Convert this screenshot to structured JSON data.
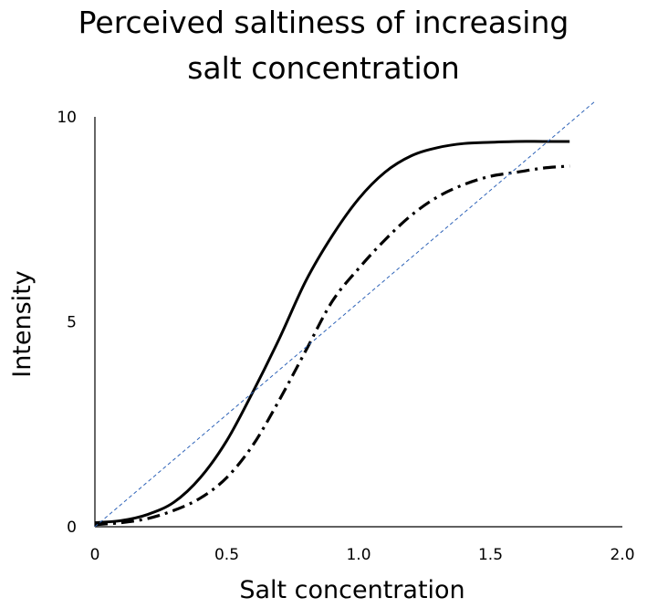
{
  "chart_data": {
    "type": "line",
    "title": "Perceived saltiness of increasing salt concentration",
    "title_lines": [
      "Perceived saltiness of increasing",
      "salt concentration"
    ],
    "xlabel": "Salt concentration",
    "ylabel": "Intensity",
    "xlim": [
      0,
      2.0
    ],
    "ylim": [
      0,
      10
    ],
    "x_ticks": [
      "0",
      "0.5",
      "1.0",
      "1.5",
      "2.0"
    ],
    "x_tick_values": [
      0,
      0.5,
      1.0,
      1.5,
      2.0
    ],
    "y_ticks": [
      "0",
      "5",
      "10"
    ],
    "y_tick_values": [
      0,
      5,
      10
    ],
    "grid": false,
    "legend": "none",
    "series": [
      {
        "style": "solid",
        "color": "#000000",
        "x": [
          0,
          0.1,
          0.2,
          0.3,
          0.4,
          0.5,
          0.6,
          0.7,
          0.8,
          0.9,
          1.0,
          1.1,
          1.2,
          1.3,
          1.4,
          1.5,
          1.6,
          1.7,
          1.8
        ],
        "y": [
          0.1,
          0.15,
          0.3,
          0.6,
          1.2,
          2.1,
          3.3,
          4.6,
          6.0,
          7.1,
          8.0,
          8.65,
          9.05,
          9.25,
          9.35,
          9.38,
          9.4,
          9.4,
          9.4
        ]
      },
      {
        "style": "dash-dot",
        "color": "#000000",
        "x": [
          0,
          0.1,
          0.2,
          0.3,
          0.4,
          0.5,
          0.6,
          0.7,
          0.8,
          0.9,
          1.0,
          1.1,
          1.2,
          1.3,
          1.4,
          1.5,
          1.6,
          1.7,
          1.8
        ],
        "y": [
          0.05,
          0.1,
          0.2,
          0.4,
          0.7,
          1.2,
          2.0,
          3.1,
          4.3,
          5.5,
          6.3,
          7.0,
          7.6,
          8.05,
          8.35,
          8.55,
          8.65,
          8.75,
          8.8
        ]
      },
      {
        "style": "dashed",
        "color": "#2e63b8",
        "x": [
          0,
          1.9
        ],
        "y": [
          0,
          10.4
        ]
      }
    ]
  }
}
